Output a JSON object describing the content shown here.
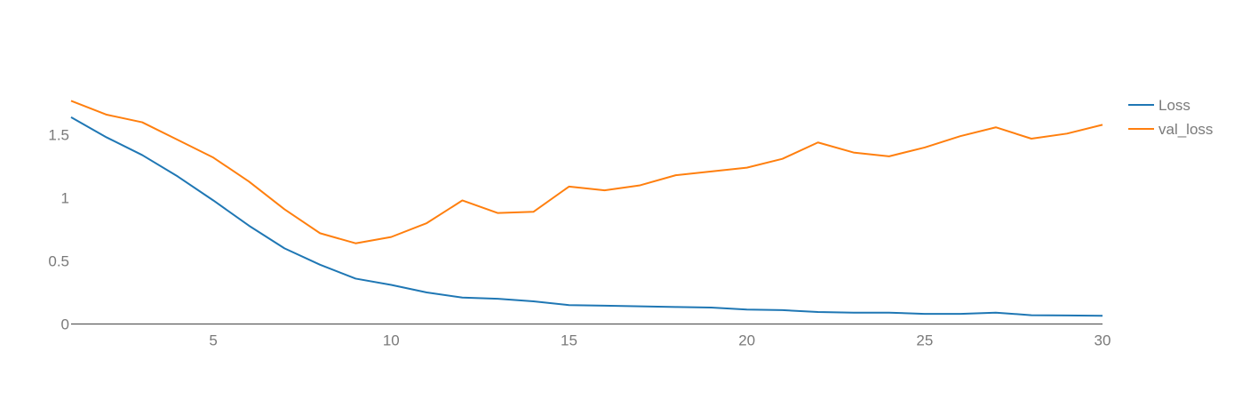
{
  "chart_data": {
    "type": "line",
    "title": "",
    "xlabel": "",
    "ylabel": "",
    "xlim": [
      1,
      30
    ],
    "ylim": [
      0,
      1.9
    ],
    "x_ticks": [
      5,
      10,
      15,
      20,
      25,
      30
    ],
    "y_ticks": [
      0,
      0.5,
      1,
      1.5
    ],
    "x_tick_labels": [
      "5",
      "10",
      "15",
      "20",
      "25",
      "30"
    ],
    "y_tick_labels": [
      "0",
      "0.5",
      "1",
      "1.5"
    ],
    "grid": false,
    "legend_position": "top-right",
    "x": [
      1,
      2,
      3,
      4,
      5,
      6,
      7,
      8,
      9,
      10,
      11,
      12,
      13,
      14,
      15,
      16,
      17,
      18,
      19,
      20,
      21,
      22,
      23,
      24,
      25,
      26,
      27,
      28,
      29,
      30
    ],
    "series": [
      {
        "name": "Loss",
        "color": "#1f77b4",
        "values": [
          1.64,
          1.48,
          1.34,
          1.17,
          0.98,
          0.78,
          0.6,
          0.47,
          0.36,
          0.31,
          0.25,
          0.21,
          0.2,
          0.18,
          0.15,
          0.145,
          0.14,
          0.135,
          0.13,
          0.115,
          0.11,
          0.095,
          0.09,
          0.09,
          0.08,
          0.08,
          0.09,
          0.07,
          0.068,
          0.065
        ]
      },
      {
        "name": "val_loss",
        "color": "#ff7f0e",
        "values": [
          1.77,
          1.66,
          1.6,
          1.46,
          1.32,
          1.13,
          0.91,
          0.72,
          0.64,
          0.69,
          0.8,
          0.98,
          0.88,
          0.89,
          1.09,
          1.06,
          1.1,
          1.18,
          1.21,
          1.24,
          1.31,
          1.44,
          1.36,
          1.33,
          1.4,
          1.49,
          1.56,
          1.47,
          1.51,
          1.58
        ]
      }
    ]
  }
}
